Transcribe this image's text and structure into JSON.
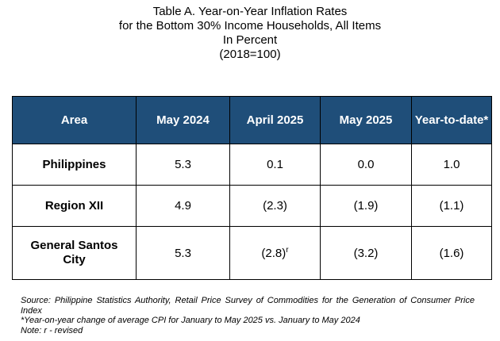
{
  "title": {
    "line1": "Table A. Year-on-Year Inflation Rates",
    "line2": "for the Bottom 30% Income Households, All Items",
    "line3": "In Percent",
    "line4": "(2018=100)"
  },
  "table": {
    "headers": [
      "Area",
      "May 2024",
      "April 2025",
      "May 2025",
      "Year-to-date*"
    ],
    "rows": [
      {
        "area": "Philippines",
        "values": [
          "5.3",
          "0.1",
          "0.0",
          "1.0"
        ]
      },
      {
        "area": "Region XII",
        "values": [
          "4.9",
          "(2.3)",
          "(1.9)",
          "(1.1)"
        ]
      },
      {
        "area_line1": "General Santos",
        "area_line2": "City",
        "values": [
          "5.3",
          "(2.8)",
          "(3.2)",
          "(1.6)"
        ],
        "revised_mark": "r"
      }
    ],
    "header_color": "#1f4e79"
  },
  "notes": {
    "source": "Source: Philippine Statistics Authority, Retail Price Survey of Commodities for the Generation of Consumer Price Index",
    "footnote": "*Year-on-year change of average CPI for January to May 2025 vs. January to May 2024",
    "note": "Note: r - revised"
  }
}
